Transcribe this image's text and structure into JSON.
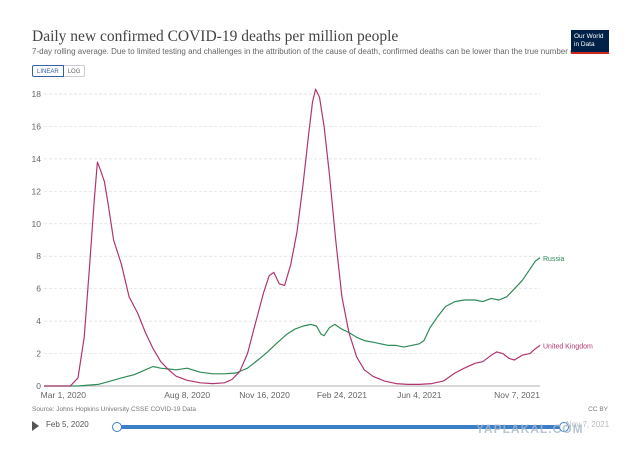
{
  "header": {
    "title": "Daily new confirmed COVID-19 deaths per million people",
    "subtitle": "7-day rolling average. Due to limited testing and challenges in the attribution of the cause of death, confirmed deaths can be lower than the true number of deaths.",
    "logo_line1": "Our World",
    "logo_line2": "in Data"
  },
  "toggles": {
    "linear": "LINEAR",
    "log": "LOG"
  },
  "footer": {
    "source": "Source: Johns Hopkins University CSSE COVID-19 Data",
    "license": "CC BY"
  },
  "timeline": {
    "start": "Feb 5, 2020",
    "end": "Nov 7, 2021"
  },
  "watermark": "YAPLAKAL.COM",
  "chart_data": {
    "type": "line",
    "title": "Daily new confirmed COVID-19 deaths per million people",
    "ylim": [
      0,
      18
    ],
    "yticks": [
      0,
      2,
      4,
      6,
      8,
      10,
      12,
      14,
      16,
      18
    ],
    "xlim": [
      "2020-02-05",
      "2021-11-07"
    ],
    "xticks": [
      {
        "date": "2020-03-01",
        "label": "Mar 1, 2020"
      },
      {
        "date": "2020-08-08",
        "label": "Aug 8, 2020"
      },
      {
        "date": "2020-11-16",
        "label": "Nov 16, 2020"
      },
      {
        "date": "2021-02-24",
        "label": "Feb 24, 2021"
      },
      {
        "date": "2021-06-04",
        "label": "Jun 4, 2021"
      },
      {
        "date": "2021-11-07",
        "label": "Nov 7, 2021"
      }
    ],
    "grid": true,
    "legend": "end-of-line labels",
    "series": [
      {
        "name": "Russia",
        "color": "#2e8b57",
        "points": [
          [
            "2020-02-05",
            0
          ],
          [
            "2020-03-20",
            0
          ],
          [
            "2020-04-15",
            0.1
          ],
          [
            "2020-05-01",
            0.3
          ],
          [
            "2020-05-15",
            0.5
          ],
          [
            "2020-06-01",
            0.7
          ],
          [
            "2020-06-15",
            1.0
          ],
          [
            "2020-06-25",
            1.2
          ],
          [
            "2020-07-05",
            1.1
          ],
          [
            "2020-07-15",
            1.05
          ],
          [
            "2020-07-25",
            1.0
          ],
          [
            "2020-08-08",
            1.1
          ],
          [
            "2020-08-25",
            0.85
          ],
          [
            "2020-09-10",
            0.75
          ],
          [
            "2020-09-25",
            0.75
          ],
          [
            "2020-10-10",
            0.8
          ],
          [
            "2020-10-25",
            1.1
          ],
          [
            "2020-11-10",
            1.7
          ],
          [
            "2020-11-20",
            2.1
          ],
          [
            "2020-12-01",
            2.6
          ],
          [
            "2020-12-15",
            3.2
          ],
          [
            "2020-12-25",
            3.5
          ],
          [
            "2021-01-05",
            3.7
          ],
          [
            "2021-01-15",
            3.8
          ],
          [
            "2021-01-22",
            3.7
          ],
          [
            "2021-01-28",
            3.2
          ],
          [
            "2021-02-01",
            3.1
          ],
          [
            "2021-02-08",
            3.6
          ],
          [
            "2021-02-15",
            3.8
          ],
          [
            "2021-02-24",
            3.5
          ],
          [
            "2021-03-05",
            3.3
          ],
          [
            "2021-03-15",
            3.0
          ],
          [
            "2021-03-25",
            2.8
          ],
          [
            "2021-04-05",
            2.7
          ],
          [
            "2021-04-15",
            2.6
          ],
          [
            "2021-04-25",
            2.5
          ],
          [
            "2021-05-05",
            2.5
          ],
          [
            "2021-05-15",
            2.4
          ],
          [
            "2021-05-25",
            2.5
          ],
          [
            "2021-06-04",
            2.6
          ],
          [
            "2021-06-10",
            2.8
          ],
          [
            "2021-06-18",
            3.6
          ],
          [
            "2021-06-28",
            4.3
          ],
          [
            "2021-07-08",
            4.9
          ],
          [
            "2021-07-20",
            5.2
          ],
          [
            "2021-08-01",
            5.3
          ],
          [
            "2021-08-15",
            5.3
          ],
          [
            "2021-08-25",
            5.2
          ],
          [
            "2021-09-05",
            5.4
          ],
          [
            "2021-09-15",
            5.3
          ],
          [
            "2021-09-25",
            5.5
          ],
          [
            "2021-10-05",
            6.0
          ],
          [
            "2021-10-15",
            6.5
          ],
          [
            "2021-10-25",
            7.2
          ],
          [
            "2021-11-01",
            7.7
          ],
          [
            "2021-11-07",
            7.9
          ]
        ]
      },
      {
        "name": "United Kingdom",
        "color": "#b13570",
        "points": [
          [
            "2020-02-05",
            0
          ],
          [
            "2020-03-10",
            0
          ],
          [
            "2020-03-20",
            0.5
          ],
          [
            "2020-03-28",
            3.0
          ],
          [
            "2020-04-04",
            7.5
          ],
          [
            "2020-04-10",
            11.5
          ],
          [
            "2020-04-14",
            13.8
          ],
          [
            "2020-04-18",
            13.3
          ],
          [
            "2020-04-23",
            12.6
          ],
          [
            "2020-04-28",
            11.2
          ],
          [
            "2020-05-05",
            9.0
          ],
          [
            "2020-05-15",
            7.5
          ],
          [
            "2020-05-25",
            5.5
          ],
          [
            "2020-06-05",
            4.5
          ],
          [
            "2020-06-15",
            3.3
          ],
          [
            "2020-06-25",
            2.3
          ],
          [
            "2020-07-05",
            1.5
          ],
          [
            "2020-07-15",
            1.0
          ],
          [
            "2020-07-25",
            0.6
          ],
          [
            "2020-08-08",
            0.35
          ],
          [
            "2020-08-25",
            0.2
          ],
          [
            "2020-09-10",
            0.15
          ],
          [
            "2020-09-25",
            0.2
          ],
          [
            "2020-10-05",
            0.4
          ],
          [
            "2020-10-15",
            0.9
          ],
          [
            "2020-10-25",
            2.0
          ],
          [
            "2020-11-05",
            4.0
          ],
          [
            "2020-11-15",
            5.8
          ],
          [
            "2020-11-22",
            6.8
          ],
          [
            "2020-11-28",
            7.0
          ],
          [
            "2020-12-05",
            6.3
          ],
          [
            "2020-12-12",
            6.2
          ],
          [
            "2020-12-20",
            7.5
          ],
          [
            "2020-12-28",
            9.5
          ],
          [
            "2021-01-05",
            12.5
          ],
          [
            "2021-01-12",
            15.5
          ],
          [
            "2021-01-17",
            17.5
          ],
          [
            "2021-01-21",
            18.3
          ],
          [
            "2021-01-26",
            17.8
          ],
          [
            "2021-02-01",
            16.0
          ],
          [
            "2021-02-08",
            13.0
          ],
          [
            "2021-02-16",
            9.0
          ],
          [
            "2021-02-24",
            5.5
          ],
          [
            "2021-03-05",
            3.3
          ],
          [
            "2021-03-15",
            1.8
          ],
          [
            "2021-03-25",
            1.0
          ],
          [
            "2021-04-05",
            0.6
          ],
          [
            "2021-04-20",
            0.3
          ],
          [
            "2021-05-05",
            0.15
          ],
          [
            "2021-05-20",
            0.1
          ],
          [
            "2021-06-04",
            0.1
          ],
          [
            "2021-06-20",
            0.15
          ],
          [
            "2021-07-05",
            0.3
          ],
          [
            "2021-07-20",
            0.8
          ],
          [
            "2021-08-01",
            1.1
          ],
          [
            "2021-08-15",
            1.4
          ],
          [
            "2021-08-25",
            1.5
          ],
          [
            "2021-09-05",
            1.9
          ],
          [
            "2021-09-12",
            2.1
          ],
          [
            "2021-09-20",
            2.0
          ],
          [
            "2021-09-28",
            1.7
          ],
          [
            "2021-10-05",
            1.6
          ],
          [
            "2021-10-15",
            1.9
          ],
          [
            "2021-10-25",
            2.0
          ],
          [
            "2021-11-01",
            2.3
          ],
          [
            "2021-11-07",
            2.5
          ]
        ]
      }
    ]
  }
}
